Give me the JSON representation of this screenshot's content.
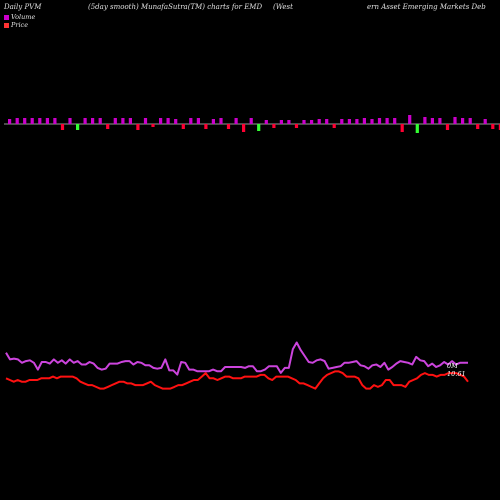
{
  "header": {
    "title_left": "Daily PVM",
    "title_mid": "(5day smooth) MunafaSutra(TM) charts for EMD",
    "title_right_a": "(West",
    "title_right_b": "ern  Asset Emerging Markets Deb"
  },
  "legend": {
    "volume_label": "Volume",
    "price_label": "Price",
    "volume_color": "#cc00cc",
    "price_color": "#ff3333"
  },
  "labels": {
    "volume_end": "0M",
    "price_end": "10.61"
  },
  "colors": {
    "bar_up": "#cc00cc",
    "bar_down": "#ff0033",
    "bar_green": "#33ff33",
    "volume_line": "#cc44dd",
    "price_line": "#ff1111",
    "zero_line": "#cccccc"
  },
  "chart_data": {
    "type": "line",
    "bars": {
      "values": [
        5,
        6,
        6,
        6,
        6,
        6,
        6,
        -6,
        6,
        -6,
        6,
        6,
        6,
        -5,
        6,
        6,
        6,
        -6,
        6,
        -3,
        6,
        6,
        5,
        -5,
        6,
        6,
        -5,
        5,
        6,
        -5,
        6,
        -8,
        6,
        -7,
        4,
        -4,
        4,
        4,
        -4,
        4,
        4,
        5,
        5,
        -4,
        5,
        5,
        5,
        6,
        5,
        6,
        6,
        6,
        -8,
        9,
        -9,
        7,
        6,
        6,
        -6,
        7,
        6,
        6,
        -5,
        5,
        -5,
        -6,
        -6,
        5,
        5,
        -5,
        6,
        -5,
        5,
        5,
        -5,
        5,
        5,
        4,
        -4,
        5,
        5,
        5,
        4,
        4,
        5,
        5,
        5,
        -4,
        6,
        4
      ]
    },
    "series": [
      {
        "name": "Volume",
        "values": [
          30,
          22,
          23,
          22,
          18,
          20,
          21,
          18,
          10,
          19,
          19,
          17,
          22,
          18,
          21,
          17,
          22,
          18,
          20,
          16,
          16,
          19,
          17,
          12,
          10,
          11,
          17,
          17,
          17,
          19,
          20,
          20,
          16,
          19,
          18,
          15,
          15,
          12,
          11,
          12,
          22,
          9,
          9,
          4,
          19,
          18,
          10,
          10,
          8,
          8,
          8,
          8,
          10,
          8,
          8,
          13,
          13,
          13,
          13,
          13,
          12,
          14,
          14,
          8,
          8,
          10,
          14,
          14,
          14,
          6,
          12,
          12,
          34,
          42,
          33,
          26,
          19,
          18,
          21,
          22,
          20,
          11,
          12,
          13,
          14,
          18,
          18,
          19,
          20,
          15,
          14,
          11,
          15,
          16,
          13,
          18,
          10,
          13,
          17,
          20,
          19,
          18,
          16,
          25,
          21,
          20,
          14,
          17,
          13,
          15,
          19,
          16,
          20,
          16,
          18,
          18,
          18
        ]
      },
      {
        "name": "Price",
        "values": [
          10.72,
          10.71,
          10.7,
          10.71,
          10.7,
          10.7,
          10.71,
          10.71,
          10.71,
          10.72,
          10.72,
          10.72,
          10.73,
          10.72,
          10.73,
          10.73,
          10.73,
          10.73,
          10.72,
          10.7,
          10.69,
          10.68,
          10.68,
          10.67,
          10.66,
          10.66,
          10.67,
          10.68,
          10.69,
          10.7,
          10.7,
          10.69,
          10.69,
          10.68,
          10.68,
          10.68,
          10.69,
          10.7,
          10.68,
          10.67,
          10.66,
          10.66,
          10.66,
          10.67,
          10.68,
          10.68,
          10.69,
          10.7,
          10.71,
          10.71,
          10.73,
          10.75,
          10.72,
          10.72,
          10.71,
          10.72,
          10.73,
          10.73,
          10.72,
          10.72,
          10.72,
          10.73,
          10.73,
          10.73,
          10.73,
          10.74,
          10.74,
          10.72,
          10.71,
          10.73,
          10.73,
          10.73,
          10.73,
          10.72,
          10.71,
          10.69,
          10.69,
          10.68,
          10.67,
          10.66,
          10.69,
          10.72,
          10.74,
          10.75,
          10.76,
          10.76,
          10.75,
          10.73,
          10.73,
          10.73,
          10.72,
          10.68,
          10.66,
          10.66,
          10.68,
          10.67,
          10.68,
          10.71,
          10.71,
          10.68,
          10.68,
          10.68,
          10.67,
          10.7,
          10.71,
          10.72,
          10.74,
          10.75,
          10.74,
          10.74,
          10.73,
          10.74,
          10.74,
          10.75,
          10.75,
          10.75,
          10.74,
          10.73,
          10.7
        ]
      }
    ]
  }
}
